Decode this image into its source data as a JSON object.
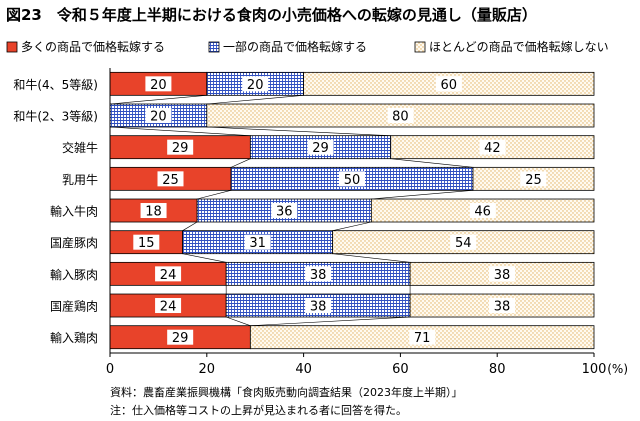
{
  "title": "図23　令和５年度上半期における食肉の小売価格への転嫁の見通し（量販店）",
  "source": "資料：農畜産業振興機構「食肉販売動向調査結果（2023年度上半期）」",
  "note": "注：仕入価格等コストの上昇が見込まれる者に回答を得た。",
  "chart_data": {
    "type": "bar",
    "orientation": "horizontal",
    "stacked": true,
    "categories": [
      "和牛(4、5等級)",
      "和牛(2、3等級)",
      "交雑牛",
      "乳用牛",
      "輸入牛肉",
      "国産豚肉",
      "輸入豚肉",
      "国産鶏肉",
      "輸入鶏肉"
    ],
    "series": [
      {
        "name": "多くの商品で価格転嫁する",
        "values": [
          20,
          0,
          29,
          25,
          18,
          15,
          24,
          24,
          29
        ],
        "color": "#e8432a"
      },
      {
        "name": "一部の商品で価格転嫁する",
        "values": [
          20,
          20,
          29,
          50,
          36,
          31,
          38,
          38,
          0
        ],
        "color": "#3b52c8"
      },
      {
        "name": "ほとんどの商品で価格転嫁しない",
        "values": [
          60,
          80,
          42,
          25,
          46,
          54,
          38,
          38,
          71
        ],
        "color": "#f3dca8"
      }
    ],
    "xlim": [
      0,
      100
    ],
    "xticks": [
      0,
      20,
      40,
      60,
      80,
      100
    ],
    "xunit": "(%)",
    "legend_position": "top",
    "grid": false
  }
}
